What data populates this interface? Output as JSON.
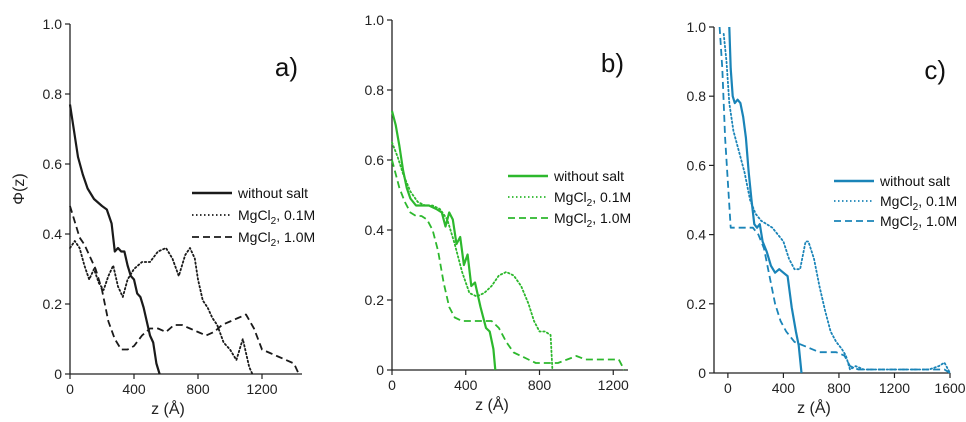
{
  "chart_data": [
    {
      "type": "line",
      "panel_label": "a)",
      "xlabel": "z (Å)",
      "ylabel": "Φ(z)",
      "xlim": [
        0,
        1450
      ],
      "ylim": [
        0,
        1.0
      ],
      "xticks": [
        0,
        400,
        800,
        1200
      ],
      "yticks": [
        0,
        0.2,
        0.4,
        0.6,
        0.8,
        1.0
      ],
      "xtick_labels": [
        "0",
        "400",
        "800",
        "1200"
      ],
      "ytick_labels": [
        "0",
        "0.2",
        "0.4",
        "0.6",
        "0.8",
        "1.0"
      ],
      "color": "#1a1a1a",
      "legend": {
        "position": "right",
        "entries": [
          "without salt",
          "MgCl₂, 0.1M",
          "MgCl₂, 1.0M"
        ]
      },
      "series": [
        {
          "name": "without salt",
          "style": "solid",
          "x": [
            0,
            20,
            50,
            80,
            110,
            150,
            200,
            230,
            260,
            280,
            300,
            320,
            340,
            360,
            380,
            400,
            420,
            440,
            460,
            480,
            500,
            520,
            540,
            560
          ],
          "y": [
            0.77,
            0.71,
            0.62,
            0.57,
            0.53,
            0.5,
            0.48,
            0.47,
            0.43,
            0.35,
            0.36,
            0.35,
            0.35,
            0.31,
            0.28,
            0.27,
            0.23,
            0.22,
            0.19,
            0.15,
            0.11,
            0.09,
            0.03,
            0.0
          ]
        },
        {
          "name": "MgCl₂, 0.1M",
          "style": "dotted",
          "x": [
            0,
            30,
            60,
            90,
            120,
            150,
            180,
            210,
            240,
            270,
            300,
            330,
            360,
            400,
            450,
            500,
            550,
            600,
            640,
            680,
            720,
            750,
            780,
            800,
            830,
            860,
            890,
            920,
            960,
            1000,
            1040,
            1080,
            1120,
            1140
          ],
          "y": [
            0.36,
            0.38,
            0.36,
            0.31,
            0.27,
            0.3,
            0.26,
            0.24,
            0.28,
            0.31,
            0.25,
            0.22,
            0.27,
            0.3,
            0.32,
            0.32,
            0.35,
            0.36,
            0.33,
            0.28,
            0.34,
            0.36,
            0.33,
            0.27,
            0.21,
            0.19,
            0.16,
            0.14,
            0.09,
            0.07,
            0.04,
            0.1,
            0.02,
            0.0
          ]
        },
        {
          "name": "MgCl₂, 1.0M",
          "style": "dashed",
          "x": [
            0,
            20,
            40,
            60,
            90,
            120,
            160,
            200,
            240,
            280,
            320,
            360,
            400,
            450,
            500,
            550,
            600,
            650,
            700,
            750,
            800,
            850,
            900,
            950,
            1000,
            1050,
            1100,
            1150,
            1200,
            1250,
            1300,
            1350,
            1400,
            1430
          ],
          "y": [
            0.48,
            0.45,
            0.42,
            0.39,
            0.37,
            0.34,
            0.3,
            0.24,
            0.15,
            0.1,
            0.07,
            0.07,
            0.08,
            0.11,
            0.13,
            0.13,
            0.12,
            0.14,
            0.14,
            0.13,
            0.12,
            0.11,
            0.12,
            0.14,
            0.15,
            0.16,
            0.17,
            0.13,
            0.07,
            0.06,
            0.05,
            0.04,
            0.03,
            0.0
          ]
        }
      ]
    },
    {
      "type": "line",
      "panel_label": "b)",
      "xlabel": "z (Å)",
      "ylabel": "",
      "xlim": [
        0,
        1280
      ],
      "ylim": [
        0,
        1.0
      ],
      "xticks": [
        0,
        400,
        800,
        1200
      ],
      "yticks": [
        0,
        0.2,
        0.4,
        0.6,
        0.8,
        1.0
      ],
      "xtick_labels": [
        "0",
        "400",
        "800",
        "1200"
      ],
      "ytick_labels": [
        "0",
        "0.2",
        "0.4",
        "0.6",
        "0.8",
        "1.0"
      ],
      "color": "#2db82d",
      "legend": {
        "position": "right",
        "entries": [
          "without salt",
          "MgCl₂, 0.1M",
          "MgCl₂, 1.0M"
        ]
      },
      "series": [
        {
          "name": "without salt",
          "style": "solid",
          "x": [
            0,
            20,
            40,
            60,
            80,
            100,
            130,
            160,
            200,
            240,
            270,
            290,
            310,
            330,
            350,
            370,
            390,
            410,
            430,
            450,
            480,
            510,
            530,
            550,
            560
          ],
          "y": [
            0.74,
            0.7,
            0.64,
            0.57,
            0.52,
            0.49,
            0.47,
            0.47,
            0.47,
            0.46,
            0.45,
            0.41,
            0.45,
            0.43,
            0.36,
            0.38,
            0.3,
            0.33,
            0.24,
            0.25,
            0.18,
            0.12,
            0.11,
            0.06,
            0.0
          ]
        },
        {
          "name": "MgCl₂, 0.1M",
          "style": "dotted",
          "x": [
            0,
            30,
            60,
            100,
            140,
            180,
            220,
            260,
            300,
            340,
            380,
            420,
            460,
            500,
            540,
            580,
            620,
            660,
            700,
            740,
            770,
            800,
            830,
            860,
            870
          ],
          "y": [
            0.65,
            0.61,
            0.56,
            0.51,
            0.48,
            0.47,
            0.47,
            0.46,
            0.43,
            0.36,
            0.28,
            0.22,
            0.21,
            0.22,
            0.24,
            0.27,
            0.28,
            0.27,
            0.24,
            0.19,
            0.14,
            0.11,
            0.11,
            0.1,
            0.0
          ]
        },
        {
          "name": "MgCl₂, 1.0M",
          "style": "dashed",
          "x": [
            0,
            20,
            40,
            70,
            100,
            130,
            160,
            190,
            220,
            250,
            280,
            310,
            340,
            380,
            420,
            460,
            500,
            540,
            580,
            620,
            660,
            700,
            740,
            780,
            820,
            860,
            900,
            950,
            1000,
            1050,
            1100,
            1150,
            1200,
            1230,
            1260
          ],
          "y": [
            0.6,
            0.56,
            0.52,
            0.48,
            0.45,
            0.44,
            0.44,
            0.43,
            0.4,
            0.34,
            0.25,
            0.18,
            0.15,
            0.14,
            0.14,
            0.14,
            0.14,
            0.14,
            0.12,
            0.08,
            0.05,
            0.04,
            0.03,
            0.02,
            0.02,
            0.02,
            0.02,
            0.03,
            0.04,
            0.03,
            0.03,
            0.03,
            0.03,
            0.03,
            0.0
          ]
        }
      ]
    },
    {
      "type": "line",
      "panel_label": "c)",
      "xlabel": "z (Å)",
      "ylabel": "",
      "xlim": [
        -100,
        1600
      ],
      "ylim": [
        0,
        1.0
      ],
      "xticks": [
        0,
        400,
        800,
        1200,
        1600
      ],
      "yticks": [
        0,
        0.2,
        0.4,
        0.6,
        0.8,
        1.0
      ],
      "xtick_labels": [
        "0",
        "400",
        "800",
        "1200",
        "1600"
      ],
      "ytick_labels": [
        "0",
        "0.2",
        "0.4",
        "0.6",
        "0.8",
        "1.0"
      ],
      "color": "#1a84b8",
      "legend": {
        "position": "right",
        "entries": [
          "without salt",
          "MgCl₂, 0.1M",
          "MgCl₂, 1.0M"
        ]
      },
      "series": [
        {
          "name": "without salt",
          "style": "solid",
          "x": [
            10,
            20,
            35,
            50,
            70,
            90,
            110,
            130,
            150,
            170,
            190,
            210,
            230,
            250,
            280,
            310,
            340,
            370,
            400,
            430,
            460,
            490,
            510,
            530
          ],
          "y": [
            1.0,
            0.88,
            0.8,
            0.78,
            0.79,
            0.78,
            0.74,
            0.68,
            0.58,
            0.5,
            0.43,
            0.42,
            0.43,
            0.38,
            0.35,
            0.31,
            0.29,
            0.3,
            0.29,
            0.28,
            0.19,
            0.12,
            0.08,
            0.0
          ]
        },
        {
          "name": "MgCl₂, 0.1M",
          "style": "dotted",
          "x": [
            -30,
            -10,
            10,
            40,
            80,
            120,
            160,
            200,
            240,
            280,
            320,
            360,
            400,
            440,
            480,
            520,
            560,
            580,
            620,
            660,
            700,
            740,
            780,
            820,
            850,
            880,
            920,
            980,
            1050,
            1150,
            1250,
            1350,
            1450,
            1520,
            1560,
            1600
          ],
          "y": [
            0.98,
            0.9,
            0.78,
            0.7,
            0.64,
            0.58,
            0.5,
            0.46,
            0.44,
            0.43,
            0.42,
            0.4,
            0.38,
            0.33,
            0.3,
            0.3,
            0.38,
            0.38,
            0.33,
            0.25,
            0.18,
            0.12,
            0.09,
            0.07,
            0.05,
            0.01,
            0.02,
            0.01,
            0.01,
            0.01,
            0.01,
            0.01,
            0.01,
            0.02,
            0.03,
            0.0
          ]
        },
        {
          "name": "MgCl₂, 1.0M",
          "style": "dashed",
          "x": [
            -60,
            -40,
            -20,
            0,
            20,
            60,
            100,
            140,
            180,
            220,
            260,
            300,
            340,
            380,
            420,
            480,
            540,
            600,
            660,
            720,
            780,
            840,
            880,
            940,
            1000,
            1100,
            1200,
            1300,
            1400,
            1500,
            1560,
            1600
          ],
          "y": [
            1.0,
            0.88,
            0.68,
            0.55,
            0.42,
            0.42,
            0.42,
            0.42,
            0.42,
            0.4,
            0.36,
            0.28,
            0.2,
            0.15,
            0.12,
            0.09,
            0.08,
            0.07,
            0.06,
            0.06,
            0.06,
            0.05,
            0.02,
            0.01,
            0.01,
            0.01,
            0.01,
            0.01,
            0.01,
            0.01,
            0.01,
            0.0
          ]
        }
      ]
    }
  ]
}
